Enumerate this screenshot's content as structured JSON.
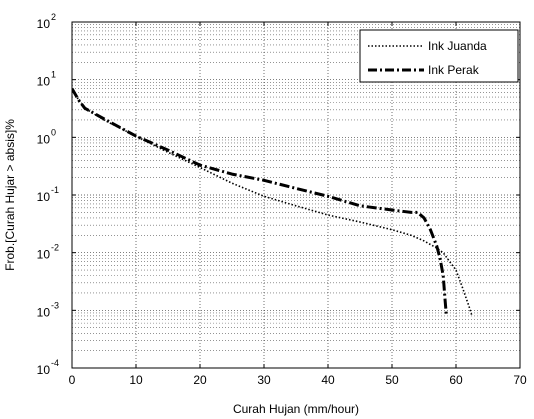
{
  "chart_data": {
    "type": "line",
    "title": "",
    "xlabel": "Curah Hujan (mm/hour)",
    "ylabel": "Frob.[Curah Hujar > absis]%",
    "xlim": [
      0,
      70
    ],
    "ylim": [
      0.0001,
      100
    ],
    "yscale": "log",
    "grid": true,
    "legend_position": "top-right",
    "x_ticks": [
      "0",
      "10",
      "20",
      "30",
      "40",
      "50",
      "60",
      "70"
    ],
    "y_ticks": [
      {
        "base": "10",
        "exp": "-4",
        "value": 0.0001
      },
      {
        "base": "10",
        "exp": "-3",
        "value": 0.001
      },
      {
        "base": "10",
        "exp": "-2",
        "value": 0.01
      },
      {
        "base": "10",
        "exp": "-1",
        "value": 0.1
      },
      {
        "base": "10",
        "exp": "0",
        "value": 1
      },
      {
        "base": "10",
        "exp": "1",
        "value": 10
      },
      {
        "base": "10",
        "exp": "2",
        "value": 100
      }
    ],
    "series": [
      {
        "name": "Ink Juanda",
        "style": "dotted",
        "color": "#000000",
        "points": [
          [
            0,
            7
          ],
          [
            1,
            4.5
          ],
          [
            2,
            3.2
          ],
          [
            5,
            2
          ],
          [
            10,
            1.05
          ],
          [
            15,
            0.55
          ],
          [
            20,
            0.3
          ],
          [
            25,
            0.16
          ],
          [
            30,
            0.095
          ],
          [
            35,
            0.065
          ],
          [
            40,
            0.045
          ],
          [
            45,
            0.034
          ],
          [
            50,
            0.025
          ],
          [
            53,
            0.02
          ],
          [
            55,
            0.016
          ],
          [
            57,
            0.012
          ],
          [
            58,
            0.01
          ],
          [
            59,
            0.007
          ],
          [
            60,
            0.005
          ],
          [
            61,
            0.0025
          ],
          [
            62,
            0.0012
          ],
          [
            62.5,
            0.0008
          ]
        ]
      },
      {
        "name": "Ink Perak",
        "style": "dash-dot",
        "color": "#000000",
        "points": [
          [
            0,
            7
          ],
          [
            1,
            4.5
          ],
          [
            2,
            3.2
          ],
          [
            5,
            2.1
          ],
          [
            10,
            1.05
          ],
          [
            15,
            0.6
          ],
          [
            20,
            0.33
          ],
          [
            25,
            0.23
          ],
          [
            30,
            0.18
          ],
          [
            35,
            0.13
          ],
          [
            40,
            0.095
          ],
          [
            45,
            0.065
          ],
          [
            50,
            0.055
          ],
          [
            53,
            0.05
          ],
          [
            54,
            0.05
          ],
          [
            55,
            0.04
          ],
          [
            56,
            0.025
          ],
          [
            57,
            0.013
          ],
          [
            57.5,
            0.008
          ],
          [
            58,
            0.004
          ],
          [
            58.3,
            0.0015
          ],
          [
            58.5,
            0.0008
          ]
        ]
      }
    ]
  }
}
